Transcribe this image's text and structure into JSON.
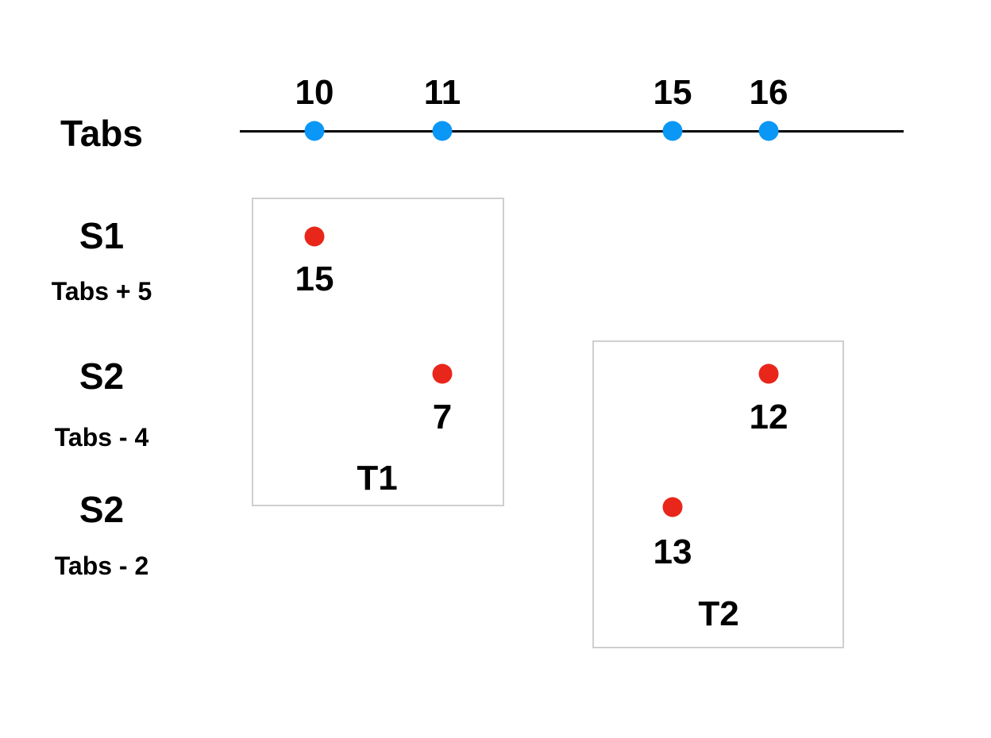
{
  "timeline": {
    "label": "Tabs",
    "ticks": [
      "10",
      "11",
      "15",
      "16"
    ],
    "dot_color": "#0a97f5"
  },
  "rows": [
    {
      "name": "S1",
      "rule": "Tabs + 5"
    },
    {
      "name": "S2",
      "rule": "Tabs - 4"
    },
    {
      "name": "S2",
      "rule": "Tabs - 2"
    }
  ],
  "groups": [
    {
      "label": "T1",
      "values": [
        "15",
        "7"
      ]
    },
    {
      "label": "T2",
      "values": [
        "12",
        "13"
      ]
    }
  ],
  "point_color": "#e8261a",
  "box_border_color": "#cfcfcf"
}
